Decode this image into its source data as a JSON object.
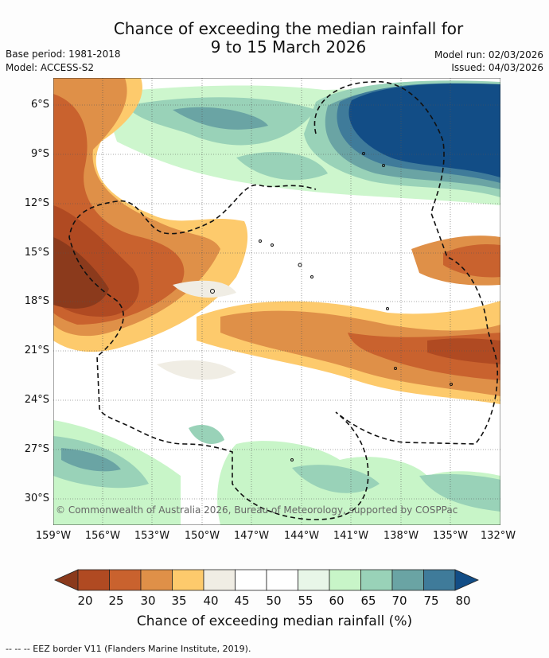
{
  "title": {
    "line1": "Chance of exceeding the median rainfall for",
    "line2": "9 to 15 March 2026"
  },
  "meta": {
    "base_period": "Base period: 1981-2018",
    "model": "Model: ACCESS-S2",
    "model_run": "Model run: 02/03/2026",
    "issued": "Issued: 04/03/2026"
  },
  "map": {
    "lat_labels": [
      "6°S",
      "9°S",
      "12°S",
      "15°S",
      "18°S",
      "21°S",
      "24°S",
      "27°S",
      "30°S"
    ],
    "lon_labels": [
      "159°W",
      "156°W",
      "153°W",
      "150°W",
      "147°W",
      "144°W",
      "141°W",
      "138°W",
      "135°W",
      "132°W"
    ],
    "copyright": "© Commonwealth of Australia 2026, Bureau of Meteorology, supported by COSPPac"
  },
  "colorbar": {
    "ticks": [
      "20",
      "25",
      "30",
      "35",
      "40",
      "45",
      "50",
      "55",
      "60",
      "65",
      "70",
      "75",
      "80"
    ],
    "colors": [
      "#8b3a1c",
      "#b04a22",
      "#c9622e",
      "#df9048",
      "#fdca6c",
      "#f0ede4",
      "#ffffff",
      "#ffffff",
      "#e8f6e8",
      "#c8f5c8",
      "#99d2b8",
      "#6aa4a4",
      "#3f7b9a",
      "#124d86"
    ],
    "label": "Chance of exceeding median rainfall (%)"
  },
  "footer": "-- -- -- EEZ border V11 (Flanders Marine Institute, 2019)."
}
